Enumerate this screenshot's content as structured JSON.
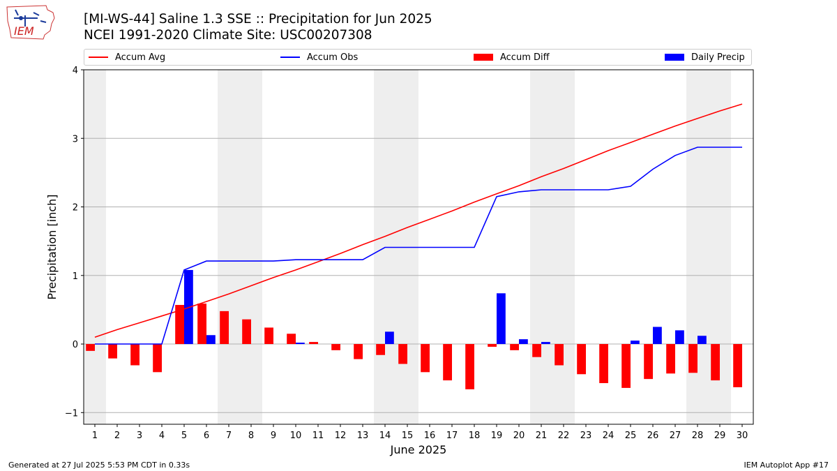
{
  "header": {
    "title_line1": "[MI-WS-44] Saline 1.3 SSE :: Precipitation for Jun 2025",
    "title_line2": "NCEI 1991-2020 Climate Site: USC00207308",
    "logo_text": "IEM"
  },
  "legend": {
    "accum_avg": "Accum Avg",
    "accum_obs": "Accum Obs",
    "accum_diff": "Accum Diff",
    "daily_precip": "Daily Precip"
  },
  "colors": {
    "accum_avg": "#ff0000",
    "accum_obs": "#0000ff",
    "accum_diff": "#ff0000",
    "daily_precip": "#0000ff",
    "weekend_band": "#eeeeee",
    "grid": "#b0b0b0"
  },
  "footer": {
    "generated": "Generated at 27 Jul 2025 5:53 PM CDT in 0.33s",
    "app": "IEM Autoplot App #17"
  },
  "chart_data": {
    "type": "bar",
    "xlabel": "June 2025",
    "ylabel": "Precipitation [inch]",
    "x": [
      1,
      2,
      3,
      4,
      5,
      6,
      7,
      8,
      9,
      10,
      11,
      12,
      13,
      14,
      15,
      16,
      17,
      18,
      19,
      20,
      21,
      22,
      23,
      24,
      25,
      26,
      27,
      28,
      29,
      30
    ],
    "xlim": [
      0.5,
      30.5
    ],
    "ylim": [
      -1.17,
      4.0
    ],
    "yticks": [
      -1,
      0,
      1,
      2,
      3,
      4
    ],
    "grid": true,
    "legend_position": "top",
    "weekend_days": [
      1,
      7,
      8,
      14,
      15,
      21,
      22,
      28,
      29
    ],
    "series": [
      {
        "name": "Accum Avg",
        "kind": "line",
        "values": [
          0.1,
          0.21,
          0.31,
          0.41,
          0.51,
          0.62,
          0.73,
          0.85,
          0.97,
          1.08,
          1.2,
          1.32,
          1.45,
          1.57,
          1.7,
          1.82,
          1.94,
          2.07,
          2.19,
          2.31,
          2.44,
          2.56,
          2.69,
          2.82,
          2.94,
          3.06,
          3.18,
          3.29,
          3.4,
          3.5
        ]
      },
      {
        "name": "Accum Obs",
        "kind": "line",
        "values": [
          0,
          0,
          0,
          0,
          1.08,
          1.21,
          1.21,
          1.21,
          1.21,
          1.23,
          1.23,
          1.23,
          1.23,
          1.41,
          1.41,
          1.41,
          1.41,
          1.41,
          2.15,
          2.22,
          2.25,
          2.25,
          2.25,
          2.25,
          2.3,
          2.55,
          2.75,
          2.87,
          2.87,
          2.87
        ]
      },
      {
        "name": "Accum Diff",
        "kind": "bar",
        "values": [
          -0.1,
          -0.21,
          -0.31,
          -0.41,
          0.57,
          0.59,
          0.48,
          0.36,
          0.24,
          0.15,
          0.03,
          -0.09,
          -0.22,
          -0.16,
          -0.29,
          -0.41,
          -0.53,
          -0.66,
          -0.04,
          -0.09,
          -0.19,
          -0.31,
          -0.44,
          -0.57,
          -0.64,
          -0.51,
          -0.43,
          -0.42,
          -0.53,
          -0.63
        ]
      },
      {
        "name": "Daily Precip",
        "kind": "bar",
        "values": [
          0,
          0,
          0,
          0,
          1.08,
          0.13,
          0,
          0,
          0,
          0.02,
          0,
          0,
          0,
          0.18,
          0,
          0,
          0,
          0,
          0.74,
          0.07,
          0.03,
          0,
          0,
          0,
          0.05,
          0.25,
          0.2,
          0.12,
          0,
          0
        ]
      }
    ]
  }
}
